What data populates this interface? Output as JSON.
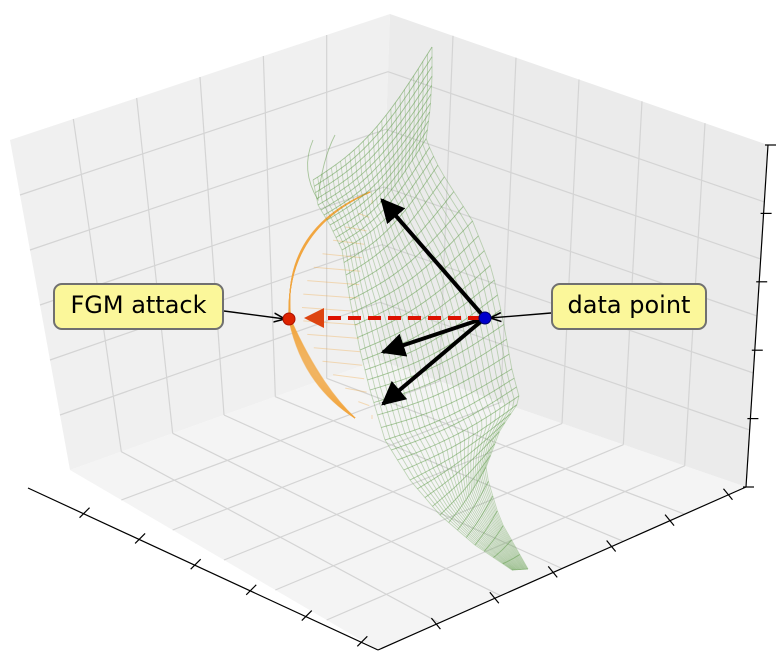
{
  "annotations": {
    "attack_label": "FGM attack",
    "point_label": "data point"
  },
  "colors": {
    "data_point": "#0000cc",
    "attack_point": "#dd2200",
    "attack_arrow": "#dd1100",
    "gradient_arrows": "#000000",
    "decision_surface": "#6a9a55",
    "adversarial_region": "#f2a640",
    "callout_fill": "#fbf79a",
    "pane": "#efefef"
  },
  "axes": {
    "grid": true,
    "tick_labels": false
  }
}
